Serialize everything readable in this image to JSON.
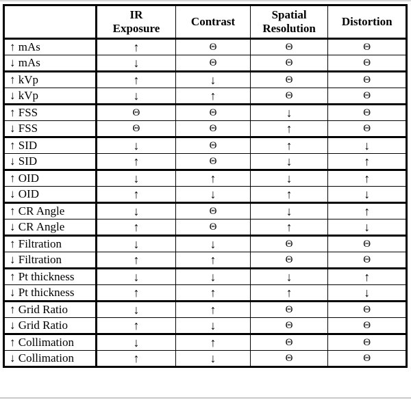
{
  "page": {
    "background": "#ffffff",
    "border_color": "#000000",
    "text_color": "#000000"
  },
  "table": {
    "columns": [
      {
        "label": "",
        "lines": [
          ""
        ]
      },
      {
        "label": "IR Exposure",
        "lines": [
          "IR",
          "Exposure"
        ]
      },
      {
        "label": "Contrast",
        "lines": [
          "Contrast"
        ]
      },
      {
        "label": "Spatial Resolution",
        "lines": [
          "Spatial",
          "Resolution"
        ]
      },
      {
        "label": "Distortion",
        "lines": [
          "Distortion"
        ]
      }
    ],
    "symbols": {
      "increase": "↑",
      "decrease": "↓",
      "no_change": "Θ"
    },
    "rows": [
      {
        "label": "↑ mAs",
        "cells": [
          "↑",
          "Θ",
          "Θ",
          "Θ"
        ]
      },
      {
        "label": "↓ mAs",
        "cells": [
          "↓",
          "Θ",
          "Θ",
          "Θ"
        ]
      },
      {
        "label": "↑ kVp",
        "cells": [
          "↑",
          "↓",
          "Θ",
          "Θ"
        ]
      },
      {
        "label": "↓ kVp",
        "cells": [
          "↓",
          "↑",
          "Θ",
          "Θ"
        ]
      },
      {
        "label": "↑ FSS",
        "cells": [
          "Θ",
          "Θ",
          "↓",
          "Θ"
        ]
      },
      {
        "label": "↓ FSS",
        "cells": [
          "Θ",
          "Θ",
          "↑",
          "Θ"
        ]
      },
      {
        "label": "↑ SID",
        "cells": [
          "↓",
          "Θ",
          "↑",
          "↓"
        ]
      },
      {
        "label": "↓ SID",
        "cells": [
          "↑",
          "Θ",
          "↓",
          "↑"
        ]
      },
      {
        "label": "↑ OID",
        "cells": [
          "↓",
          "↑",
          "↓",
          "↑"
        ]
      },
      {
        "label": "↓ OID",
        "cells": [
          "↑",
          "↓",
          "↑",
          "↓"
        ]
      },
      {
        "label": "↑ CR Angle",
        "cells": [
          "↓",
          "Θ",
          "↓",
          "↑"
        ]
      },
      {
        "label": "↓ CR Angle",
        "cells": [
          "↑",
          "Θ",
          "↑",
          "↓"
        ]
      },
      {
        "label": "↑ Filtration",
        "cells": [
          "↓",
          "↓",
          "Θ",
          "Θ"
        ]
      },
      {
        "label": "↓ Filtration",
        "cells": [
          "↑",
          "↑",
          "Θ",
          "Θ"
        ]
      },
      {
        "label": "↑ Pt thickness",
        "cells": [
          "↓",
          "↓",
          "↓",
          "↑"
        ]
      },
      {
        "label": "↓ Pt thickness",
        "cells": [
          "↑",
          "↑",
          "↑",
          "↓"
        ]
      },
      {
        "label": "↑ Grid Ratio",
        "cells": [
          "↓",
          "↑",
          "Θ",
          "Θ"
        ]
      },
      {
        "label": "↓ Grid Ratio",
        "cells": [
          "↑",
          "↓",
          "Θ",
          "Θ"
        ]
      },
      {
        "label": "↑ Collimation",
        "cells": [
          "↓",
          "↑",
          "Θ",
          "Θ"
        ]
      },
      {
        "label": "↓ Collimation",
        "cells": [
          "↑",
          "↓",
          "Θ",
          "Θ"
        ]
      }
    ]
  }
}
